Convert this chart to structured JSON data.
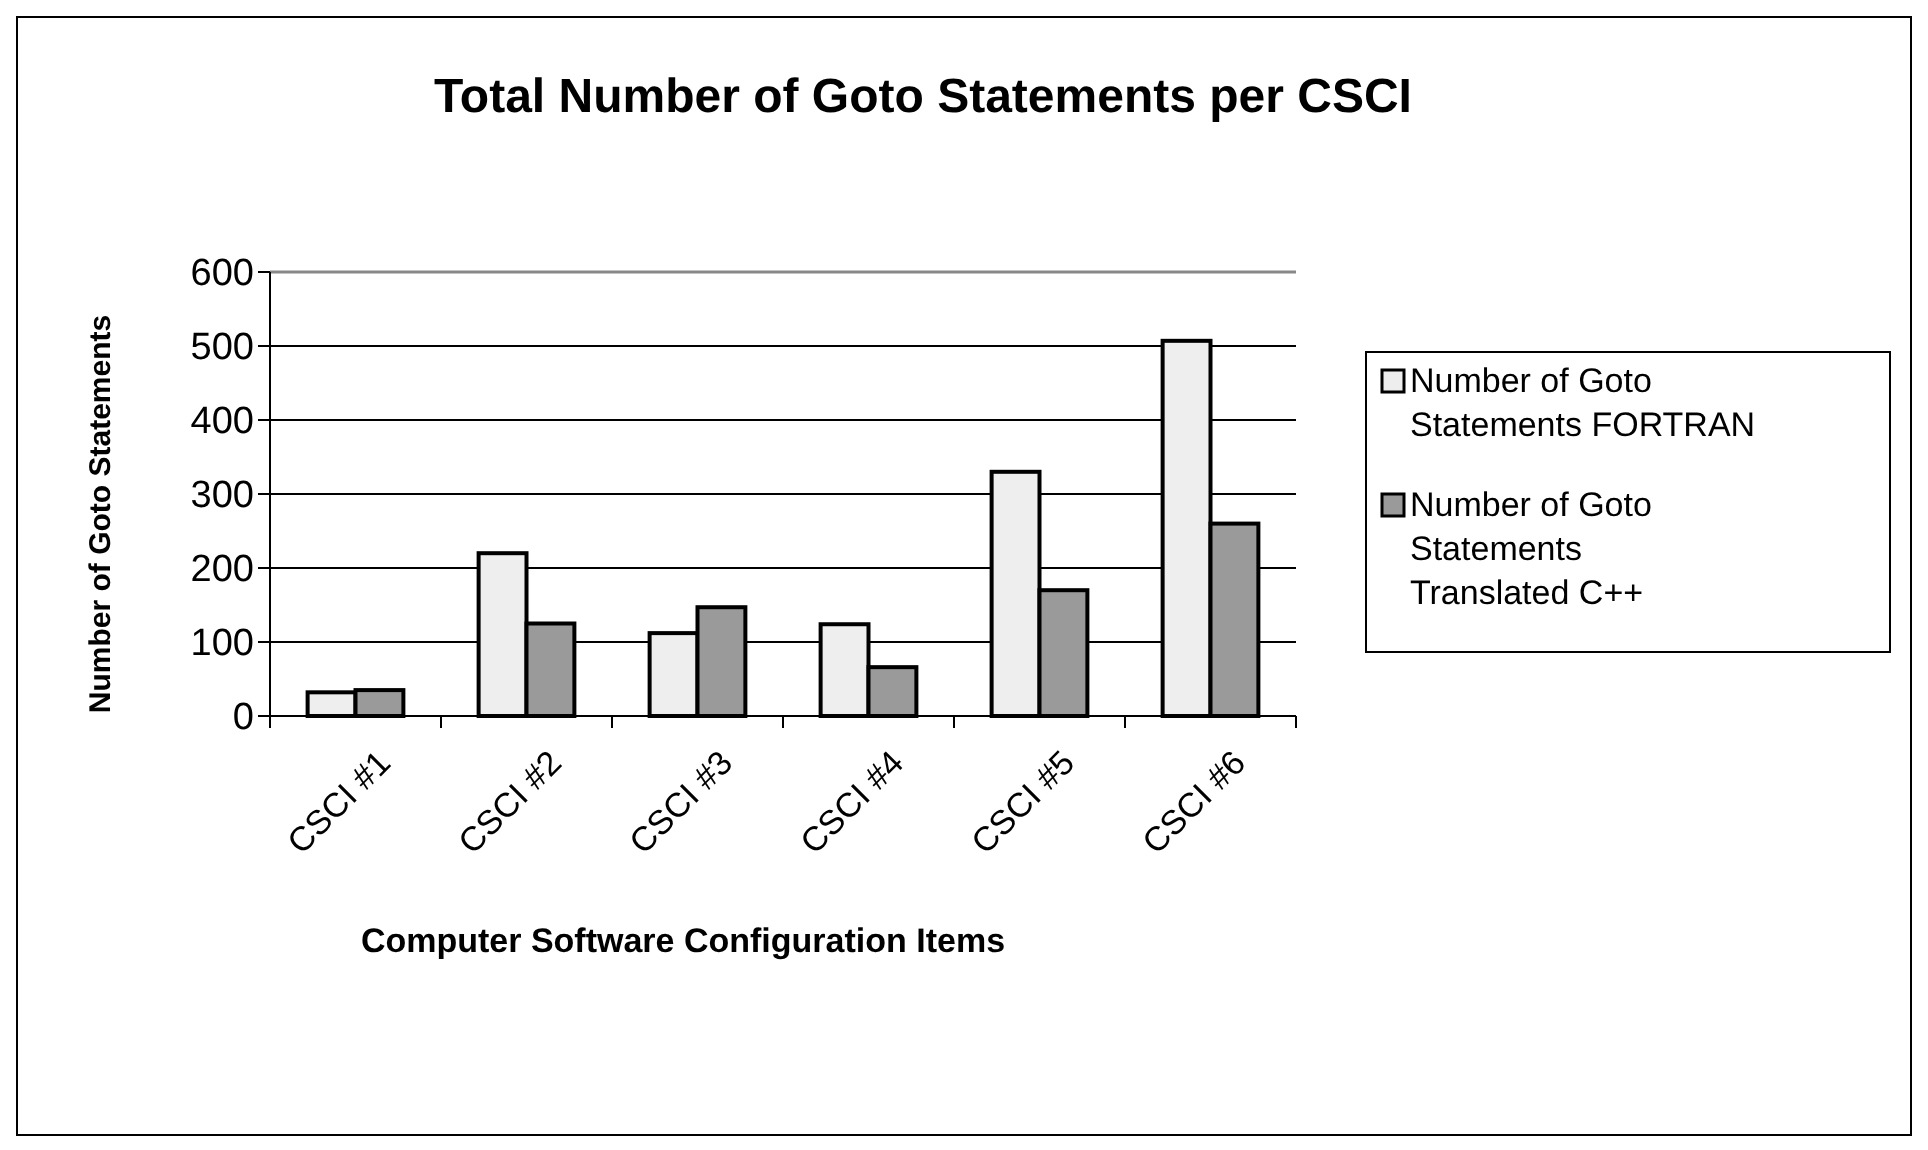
{
  "chart_data": {
    "type": "bar",
    "title": "Total Number of Goto Statements per CSCI",
    "xlabel": "Computer Software Configuration Items",
    "ylabel": "Number of Goto Statements",
    "categories": [
      "CSCI #1",
      "CSCI #2",
      "CSCI #3",
      "CSCI #4",
      "CSCI #5",
      "CSCI #6"
    ],
    "series": [
      {
        "name": "Number of Goto Statements FORTRAN",
        "color": "#eeeeee",
        "values": [
          32,
          220,
          112,
          124,
          330,
          507
        ]
      },
      {
        "name": "Number of Goto Statements Translated C++",
        "color": "#9a9a9a",
        "values": [
          35,
          125,
          147,
          66,
          170,
          260
        ]
      }
    ],
    "ylim": [
      0,
      600
    ],
    "yticks": [
      0,
      100,
      200,
      300,
      400,
      500,
      600
    ],
    "grid": "y",
    "legend": "right"
  }
}
